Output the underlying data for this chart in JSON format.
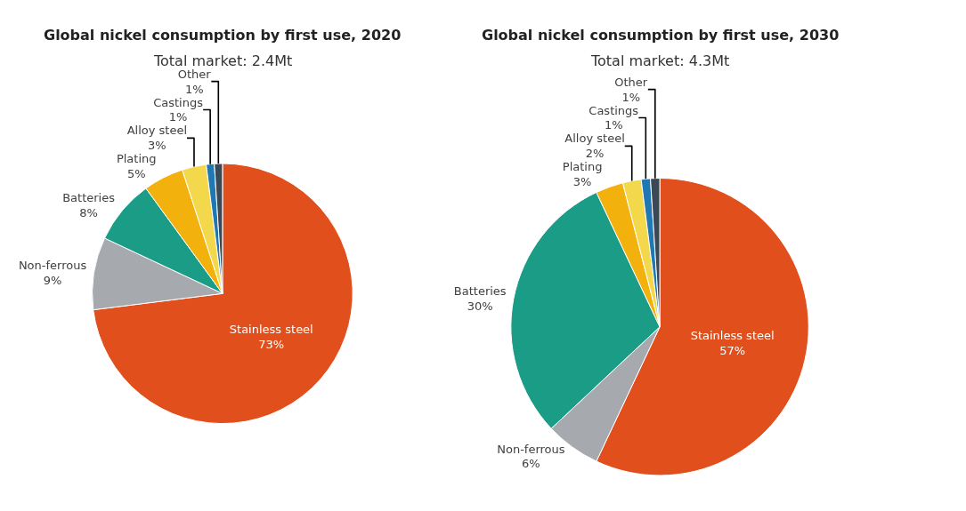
{
  "chart_data": [
    {
      "type": "pie",
      "title": "Global nickel consumption by first use, 2020",
      "subtitle": "Total market: 2.4Mt",
      "categories": [
        "Stainless steel",
        "Non-ferrous",
        "Batteries",
        "Plating",
        "Alloy steel",
        "Castings",
        "Other"
      ],
      "values": [
        73,
        9,
        8,
        5,
        3,
        1,
        1
      ],
      "value_labels": [
        "73%",
        "9%",
        "8%",
        "5%",
        "3%",
        "1%",
        "1%"
      ],
      "colors": [
        "#e04f1c",
        "#a6a9ad",
        "#1a9c86",
        "#f2b10c",
        "#f4d84c",
        "#1f78b4",
        "#3b4856"
      ],
      "legend": false
    },
    {
      "type": "pie",
      "title": "Global nickel consumption by first use, 2030",
      "subtitle": "Total market: 4.3Mt",
      "categories": [
        "Stainless steel",
        "Non-ferrous",
        "Batteries",
        "Plating",
        "Alloy steel",
        "Castings",
        "Other"
      ],
      "values": [
        57,
        6,
        30,
        3,
        2,
        1,
        1
      ],
      "value_labels": [
        "57%",
        "6%",
        "30%",
        "3%",
        "2%",
        "1%",
        "1%"
      ],
      "colors": [
        "#e04f1c",
        "#a6a9ad",
        "#1a9c86",
        "#f2b10c",
        "#f4d84c",
        "#1f78b4",
        "#3b4856"
      ],
      "legend": false
    }
  ]
}
